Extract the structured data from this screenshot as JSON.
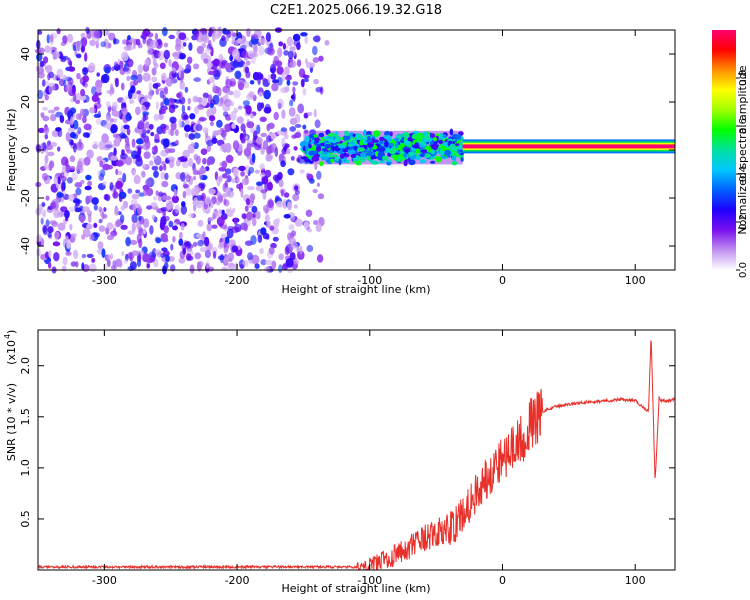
{
  "figure": {
    "title": "C2E1.2025.066.19.32.G18"
  },
  "chart_data": [
    {
      "type": "heatmap",
      "xlabel": "Height of straight line (km)",
      "ylabel": "Frequency (Hz)",
      "xlim": [
        -350,
        130
      ],
      "ylim": [
        -50,
        50
      ],
      "xticks": [
        -300,
        -200,
        -100,
        0,
        100
      ],
      "xtick_labels": [
        "-300",
        "-200",
        "-100",
        "0",
        "100"
      ],
      "yticks": [
        -40,
        -20,
        0,
        20,
        40
      ],
      "ytick_labels": [
        "-40",
        "-20",
        "0",
        "20",
        "40"
      ],
      "colorbar": {
        "label": "Normalized spectral amplitude",
        "range": [
          0,
          1
        ],
        "ticks": [
          0.0,
          0.2,
          0.4,
          0.6,
          0.8
        ],
        "tick_labels": [
          "0.0",
          "0.2",
          "0.4",
          "0.6",
          "0.8"
        ],
        "colormap": [
          "#ffffff",
          "#c090f0",
          "#7a10f0",
          "#2000ff",
          "#0060ff",
          "#00c8ff",
          "#00e0a0",
          "#00ff00",
          "#a0ff00",
          "#ffff00",
          "#ff9000",
          "#ff0000",
          "#ff0070"
        ]
      },
      "regions": [
        {
          "x": [
            -350,
            -130
          ],
          "freq": [
            -50,
            50
          ],
          "level": [
            0.05,
            0.3
          ],
          "description": "broadband noise"
        },
        {
          "x": [
            -150,
            -30
          ],
          "freq": [
            -6,
            8
          ],
          "level": [
            0.2,
            0.6
          ]
        },
        {
          "x": [
            -30,
            130
          ],
          "freq": [
            0,
            3
          ],
          "level": [
            0.6,
            1.0
          ]
        }
      ],
      "grid": false
    },
    {
      "type": "line",
      "xlabel": "Height of straight line (km)",
      "ylabel": "SNR (10 * v/v)",
      "yscale_label": "(x10",
      "yscale_exp": "4",
      "xlim": [
        -350,
        130
      ],
      "ylim": [
        0,
        2.35
      ],
      "xticks": [
        -300,
        -200,
        -100,
        0,
        100
      ],
      "xtick_labels": [
        "-300",
        "-200",
        "-100",
        "0",
        "100"
      ],
      "yticks": [
        0.5,
        1.0,
        1.5,
        2.0
      ],
      "ytick_labels": [
        "0.5",
        "1.0",
        "1.5",
        "2.0"
      ],
      "series": [
        {
          "color": "#e8302a",
          "x": [
            -350,
            -300,
            -250,
            -200,
            -150,
            -110,
            -100,
            -90,
            -80,
            -70,
            -60,
            -50,
            -40,
            -35,
            -30,
            -20,
            -10,
            0,
            10,
            20,
            30,
            40,
            50,
            60,
            70,
            80,
            90,
            100,
            105,
            110,
            112,
            115,
            118,
            120,
            125,
            130
          ],
          "y": [
            0.03,
            0.03,
            0.03,
            0.03,
            0.03,
            0.03,
            0.05,
            0.1,
            0.15,
            0.22,
            0.3,
            0.35,
            0.4,
            0.45,
            0.55,
            0.75,
            0.95,
            1.1,
            1.2,
            1.4,
            1.55,
            1.6,
            1.62,
            1.64,
            1.65,
            1.66,
            1.67,
            1.66,
            1.6,
            1.55,
            2.3,
            0.85,
            1.68,
            1.65,
            1.66,
            1.67
          ]
        }
      ],
      "grid": false
    }
  ]
}
